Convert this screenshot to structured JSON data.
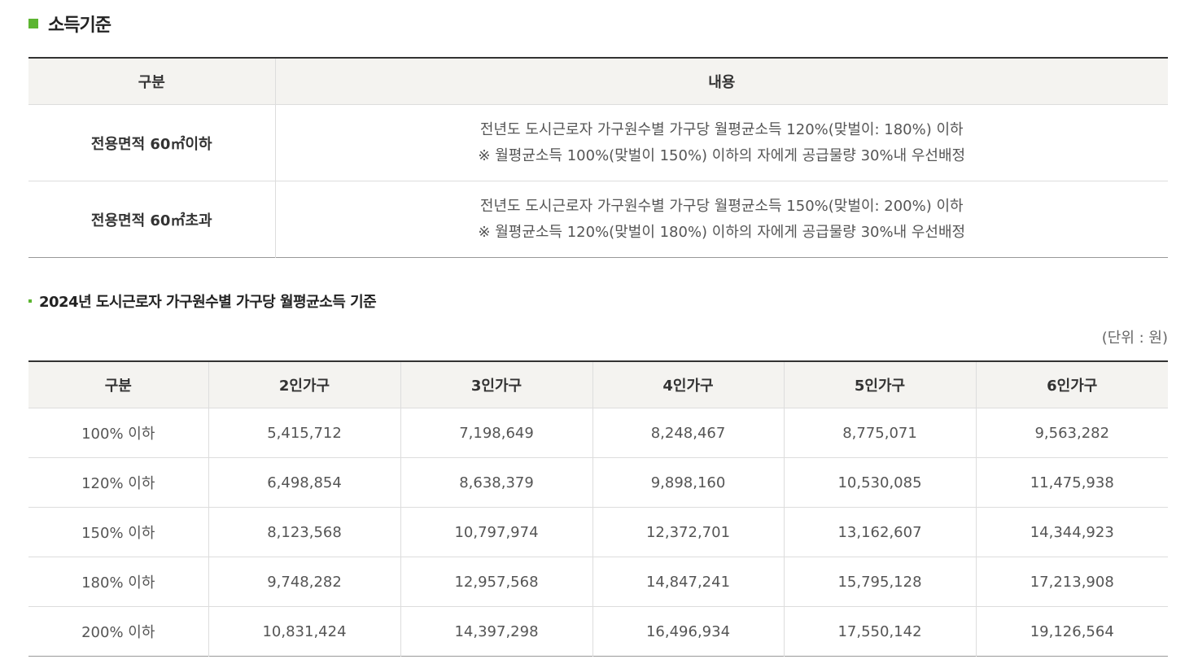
{
  "section_title": "소득기준",
  "criteria_table": {
    "headers": [
      "구분",
      "내용"
    ],
    "rows": [
      {
        "label": "전용면적 60㎡이하",
        "line1": "전년도 도시근로자 가구원수별 가구당 월평균소득 120%(맞벌이: 180%) 이하",
        "line2": "※ 월평균소득 100%(맞벌이 150%) 이하의 자에게 공급물량 30%내 우선배정"
      },
      {
        "label": "전용면적 60㎡초과",
        "line1": "전년도 도시근로자 가구원수별 가구당 월평균소득 150%(맞벌이: 200%) 이하",
        "line2": "※ 월평균소득 120%(맞벌이 180%) 이하의 자에게 공급물량 30%내 우선배정"
      }
    ]
  },
  "sub_title": "2024년 도시근로자 가구원수별 가구당 월평균소득 기준",
  "unit_note": "(단위 : 원)",
  "income_table": {
    "headers": [
      "구분",
      "2인가구",
      "3인가구",
      "4인가구",
      "5인가구",
      "6인가구"
    ],
    "rows": [
      [
        "100% 이하",
        "5,415,712",
        "7,198,649",
        "8,248,467",
        "8,775,071",
        "9,563,282"
      ],
      [
        "120% 이하",
        "6,498,854",
        "8,638,379",
        "9,898,160",
        "10,530,085",
        "11,475,938"
      ],
      [
        "150% 이하",
        "8,123,568",
        "10,797,974",
        "12,372,701",
        "13,162,607",
        "14,344,923"
      ],
      [
        "180% 이하",
        "9,748,282",
        "12,957,568",
        "14,847,241",
        "15,795,128",
        "17,213,908"
      ],
      [
        "200% 이하",
        "10,831,424",
        "14,397,298",
        "16,496,934",
        "17,550,142",
        "19,126,564"
      ]
    ]
  },
  "colors": {
    "accent": "#5cb531",
    "header_bg": "#f4f3f0"
  }
}
